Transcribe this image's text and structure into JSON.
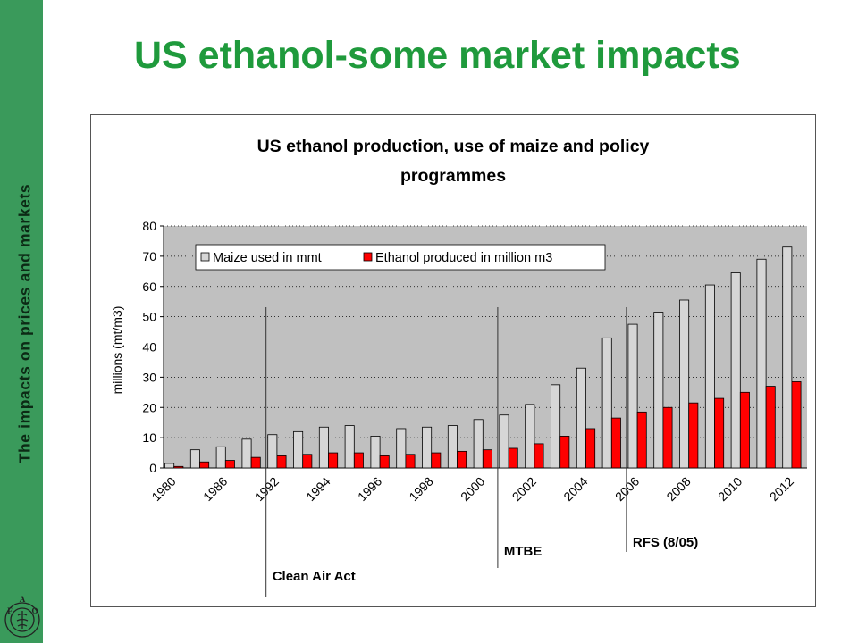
{
  "slide": {
    "title": "US ethanol-some market impacts",
    "side_label": "The impacts on prices and markets",
    "logo_letters": [
      "F",
      "A",
      "O"
    ],
    "colors": {
      "sidebar": "#3a9a5b",
      "title": "#1f9a3c",
      "maize": "#d6d6d6",
      "ethanol": "#ff0000",
      "plot_bg": "#c0c0c0"
    }
  },
  "chart_data": {
    "type": "bar",
    "title_lines": [
      "US ethanol production, use of maize and policy",
      "programmes"
    ],
    "xlabel": "",
    "ylabel": "millions (mt/m3)",
    "ylim": [
      0,
      80
    ],
    "yticks": [
      0,
      10,
      20,
      30,
      40,
      50,
      60,
      70,
      80
    ],
    "grid": true,
    "legend_placement": "top-left",
    "tick_labels": [
      "1980",
      "1986",
      "1992",
      "1994",
      "1996",
      "1998",
      "2000",
      "2002",
      "2004",
      "2006",
      "2008",
      "2010",
      "2012"
    ],
    "series": [
      {
        "name": "Maize used in mmt",
        "color": "#d6d6d6",
        "values": [
          1.5,
          6,
          7,
          9.5,
          11,
          12,
          13.5,
          14,
          10.5,
          13,
          13.5,
          14,
          16,
          17.5,
          21,
          27.5,
          33,
          43,
          47.5,
          51.5,
          55.5,
          60.5,
          64.5,
          69,
          73
        ]
      },
      {
        "name": "Ethanol produced in million m3",
        "color": "#ff0000",
        "values": [
          0.5,
          2,
          2.5,
          3.5,
          4,
          4.5,
          5,
          5,
          4,
          4.5,
          5,
          5.5,
          6,
          6.5,
          8,
          10.5,
          13,
          16.5,
          18.5,
          20,
          21.5,
          23,
          25,
          27,
          28.5
        ]
      }
    ],
    "policy_markers": [
      {
        "label": "Clean Air Act",
        "group_index": 4
      },
      {
        "label": "MTBE",
        "group_index": 13
      },
      {
        "label": "RFS (8/05)",
        "group_index": 18
      }
    ]
  }
}
